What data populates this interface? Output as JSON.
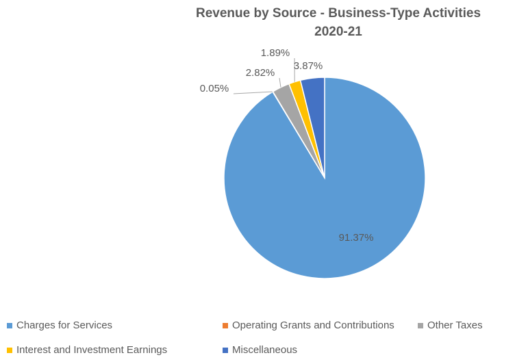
{
  "chart_data": {
    "type": "pie",
    "title": [
      "Revenue by Source - Business-Type Activities",
      "2020-21"
    ],
    "categories": [
      "Charges for Services",
      "Operating Grants and Contributions",
      "Other Taxes",
      "Interest and Investment Earnings",
      "Miscellaneous"
    ],
    "values": [
      91.37,
      0.05,
      2.82,
      1.89,
      3.87
    ],
    "value_labels": [
      "91.37%",
      "0.05%",
      "2.82%",
      "1.89%",
      "3.87%"
    ],
    "colors": [
      "#5b9bd5",
      "#ed7d31",
      "#a5a5a5",
      "#ffc000",
      "#4472c4"
    ]
  }
}
